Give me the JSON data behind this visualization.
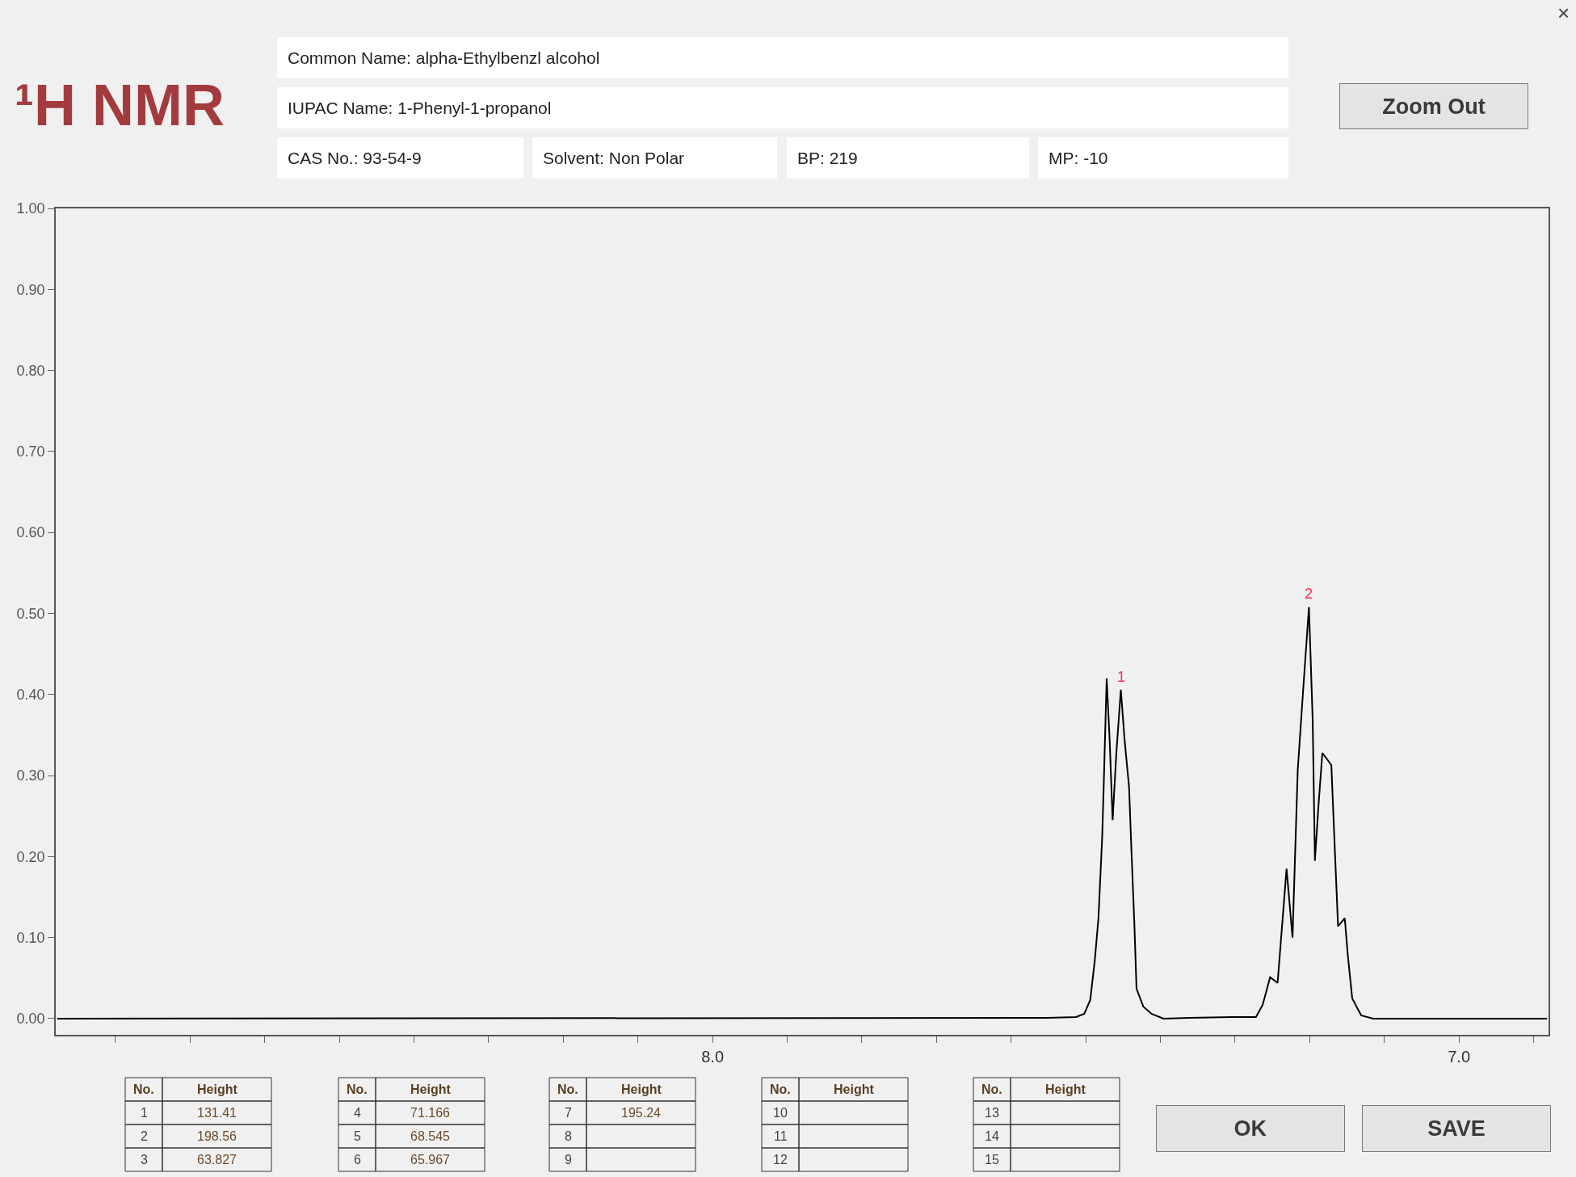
{
  "chart_data": {
    "type": "line",
    "title": "¹H NMR",
    "color": "#000000",
    "x": [
      8.878,
      7.551,
      7.513,
      7.502,
      7.494,
      7.488,
      7.483,
      7.478,
      7.476,
      7.472,
      7.468,
      7.464,
      7.459,
      7.453,
      7.448,
      7.442,
      7.439,
      7.435,
      7.432,
      7.423,
      7.412,
      7.396,
      7.362,
      7.304,
      7.272,
      7.263,
      7.253,
      7.243,
      7.231,
      7.223,
      7.216,
      7.209,
      7.201,
      7.196,
      7.193,
      7.188,
      7.183,
      7.171,
      7.167,
      7.162,
      7.153,
      7.149,
      7.143,
      7.131,
      7.115,
      6.882
    ],
    "values": [
      0.0,
      0.001,
      0.002,
      0.006,
      0.023,
      0.071,
      0.124,
      0.224,
      0.286,
      0.42,
      0.344,
      0.245,
      0.328,
      0.406,
      0.344,
      0.286,
      0.212,
      0.12,
      0.037,
      0.015,
      0.006,
      0.0,
      0.001,
      0.002,
      0.002,
      0.017,
      0.051,
      0.044,
      0.185,
      0.1,
      0.307,
      0.402,
      0.508,
      0.369,
      0.195,
      0.266,
      0.328,
      0.313,
      0.224,
      0.114,
      0.124,
      0.079,
      0.025,
      0.004,
      0.0,
      0.0
    ],
    "xlim": [
      8.88,
      6.88
    ],
    "xticks": [
      {
        "value": 8.8,
        "label": null
      },
      {
        "value": 8.7,
        "label": null
      },
      {
        "value": 8.6,
        "label": null
      },
      {
        "value": 8.5,
        "label": null
      },
      {
        "value": 8.4,
        "label": null
      },
      {
        "value": 8.3,
        "label": null
      },
      {
        "value": 8.2,
        "label": null
      },
      {
        "value": 8.1,
        "label": null
      },
      {
        "value": 8.0,
        "label": "8.0"
      },
      {
        "value": 7.9,
        "label": null
      },
      {
        "value": 7.8,
        "label": null
      },
      {
        "value": 7.7,
        "label": null
      },
      {
        "value": 7.6,
        "label": null
      },
      {
        "value": 7.5,
        "label": null
      },
      {
        "value": 7.4,
        "label": null
      },
      {
        "value": 7.3,
        "label": null
      },
      {
        "value": 7.2,
        "label": null
      },
      {
        "value": 7.1,
        "label": null
      },
      {
        "value": 7.0,
        "label": "7.0"
      },
      {
        "value": 6.9,
        "label": null
      }
    ],
    "ylim": [
      -0.02,
      1.0
    ],
    "yticks": [
      {
        "value": 0.0,
        "label": "0.00"
      },
      {
        "value": 0.1,
        "label": "0.10"
      },
      {
        "value": 0.2,
        "label": "0.20"
      },
      {
        "value": 0.3,
        "label": "0.30"
      },
      {
        "value": 0.4,
        "label": "0.40"
      },
      {
        "value": 0.5,
        "label": "0.50"
      },
      {
        "value": 0.6,
        "label": "0.60"
      },
      {
        "value": 0.7,
        "label": "0.70"
      },
      {
        "value": 0.8,
        "label": "0.80"
      },
      {
        "value": 0.9,
        "label": "0.90"
      },
      {
        "value": 1.0,
        "label": "1.00"
      }
    ],
    "annotations": [
      "×",
      "Common Name: alpha-Ethylbenzl alcohol",
      "IUPAC Name: 1-Phenyl-1-propanol",
      "CAS No.: 93-54-9",
      "Solvent: Non Polar",
      "BP: 219",
      "MP: -10",
      "Zoom Out",
      {
        "text": "1",
        "x": 7.453,
        "y": 0.406
      },
      {
        "text": "2",
        "x": 7.201,
        "y": 0.508
      },
      "No.",
      "Height",
      "1",
      "131.41",
      "2",
      "198.56",
      "3",
      "63.827",
      "No.",
      "Height",
      "4",
      "71.166",
      "5",
      "68.545",
      "6",
      "65.967",
      "No.",
      "Height",
      "7",
      "195.24",
      "8",
      null,
      "9",
      null,
      "No.",
      "Height",
      "10",
      null,
      "11",
      null,
      "12",
      null,
      "No.",
      "Height",
      "13",
      null,
      "14",
      null,
      "15",
      null,
      "OK",
      "SAVE"
    ]
  }
}
